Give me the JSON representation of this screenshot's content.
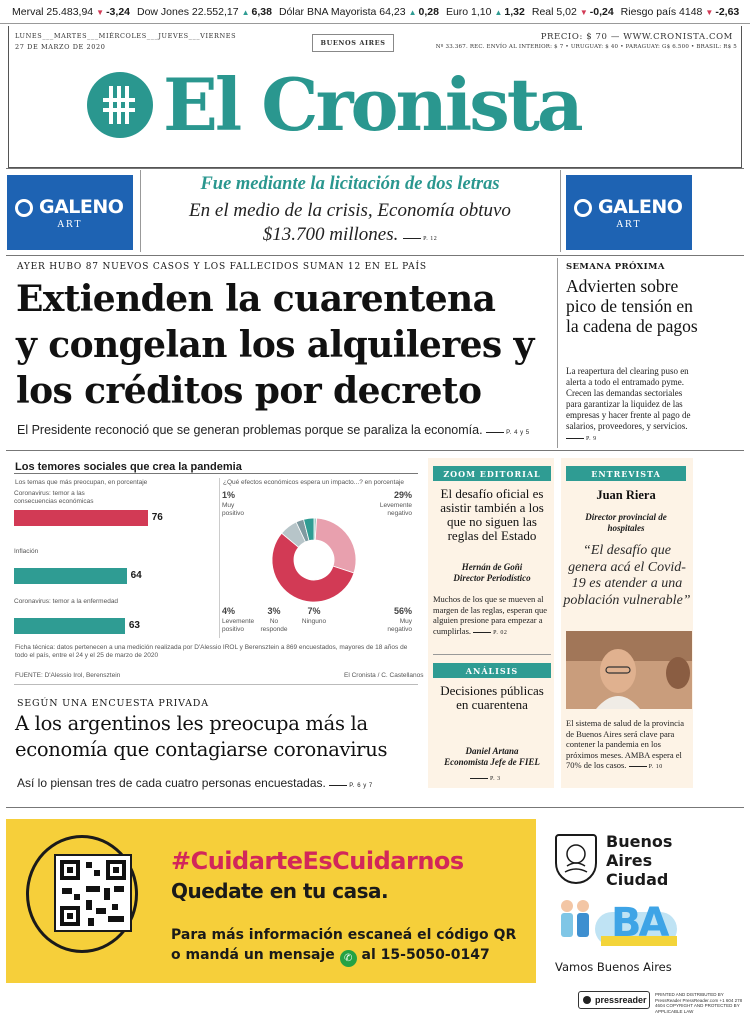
{
  "ticker": [
    {
      "name": "Merval",
      "value": "25.483,94",
      "change": "-3,24",
      "dir": "down"
    },
    {
      "name": "Dow Jones",
      "value": "22.552,17",
      "change": "6,38",
      "dir": "up"
    },
    {
      "name": "Dólar BNA Mayorista",
      "value": "64,23",
      "change": "0,28",
      "dir": "up"
    },
    {
      "name": "Euro",
      "value": "1,10",
      "change": "1,32",
      "dir": "up"
    },
    {
      "name": "Real",
      "value": "5,02",
      "change": "-0,24",
      "dir": "down"
    },
    {
      "name": "Riesgo país",
      "value": "4148",
      "change": "-2,63",
      "dir": "down"
    }
  ],
  "masthead": {
    "days": "LUNES___MARTES___MIÉRCOLES___JUEVES___VIERNES",
    "date": "27 DE MARZO DE 2020",
    "city": "BUENOS AIRES",
    "price": "PRECIO: $ 70 — WWW.CRONISTA.COM",
    "prices_line": "Nº 33.367. REC. ENVÍO AL INTERIOR: $ 7 • URUGUAY: $ 40 • PARAGUAY: G$ 6.500 • BRASIL: R$ 5",
    "logo_text": "El Cronista"
  },
  "promo": {
    "galeno_left": {
      "brand": "GALENO",
      "sub": "ART"
    },
    "galeno_right": {
      "brand": "GALENO",
      "sub": "ART"
    }
  },
  "top_teaser": {
    "headline": "Fue mediante la licitación de dos letras",
    "body": "En el medio de la crisis, Economía obtuvo $13.700 millones.",
    "page": "P. 12"
  },
  "main_story": {
    "kicker": "AYER HUBO 87 NUEVOS CASOS Y LOS FALLECIDOS SUMAN 12 EN EL PAÍS",
    "headline_lines": [
      "Extienden la cuarentena",
      "y congelan los alquileres y",
      "los créditos por decreto"
    ],
    "sub": "El Presidente reconoció que se generan problemas porque se paraliza la economía.",
    "page": "P. 4 y 5"
  },
  "side_story": {
    "kicker": "SEMANA PRÓXIMA",
    "headline": "Advierten sobre pico de tensión en la cadena de pagos",
    "body": "La reapertura del clearing puso en alerta a todo el entramado pyme. Crecen las demandas sectoriales para garantizar la liquidez de las empresas y hacer frente al pago de salarios, proveedores, y servicios.",
    "page": "P. 9"
  },
  "chart_data": [
    {
      "type": "bar",
      "title": "Los temores sociales que crea la pandemia",
      "subtitle": "Los temas que más preocupan, en porcentaje",
      "categories": [
        "Coronavirus: temor a las consecuencias económicas",
        "Inflación",
        "Coronavirus: temor a la enfermedad"
      ],
      "values": [
        76,
        64,
        63
      ],
      "colors": [
        "#d23a55",
        "#2f9c93",
        "#2f9c93"
      ],
      "ylim": [
        0,
        100
      ]
    },
    {
      "type": "pie",
      "subtitle": "¿Qué efectos económicos espera un impacto...? en porcentaje",
      "categories": [
        "Muy positivo",
        "Levemente negativo",
        "Muy negativo",
        "Ninguno",
        "No responde",
        "Levemente positivo"
      ],
      "values": [
        1,
        29,
        56,
        7,
        3,
        4
      ],
      "labels": [
        "1%",
        "29%",
        "56%",
        "7%",
        "3%",
        "4%"
      ],
      "colors": [
        "#9fd0c9",
        "#e8a0ae",
        "#d23a55",
        "#b7c5c9",
        "#7e9aa0",
        "#2f9c93"
      ]
    }
  ],
  "chart_notes": {
    "footnote": "Ficha técnica: datos pertenecen a una medición realizada por D'Alessio IROL y Berensztein a 869 encuestados, mayores de 18 años de todo el país, entre el 24 y el 25 de marzo de 2020",
    "source": "FUENTE: D'Alessio Irol, Berensztein",
    "credit": "El Cronista / C. Castellanos"
  },
  "survey_story": {
    "kicker": "SEGÚN UNA ENCUESTA PRIVADA",
    "headline": "A los argentinos les preocupa más la economía que contagiarse coronavirus",
    "sub": "Así lo piensan tres de cada cuatro personas encuestadas.",
    "page": "P. 6 y 7"
  },
  "zoom": {
    "tag": "ZOOM EDITORIAL",
    "headline": "El desafío oficial es asistir también a los que no siguen las reglas del Estado",
    "author": "Hernán de Goñi",
    "author_role": "Director Periodístico",
    "body": "Muchos de los que se mueven al margen de las reglas, esperan que alguien presione para empezar a cumplirlas.",
    "page": "P. 02"
  },
  "analisis": {
    "tag": "ANÁLISIS",
    "headline": "Decisiones públicas en cuarentena",
    "author": "Daniel Artana",
    "author_role": "Economista Jefe de FIEL",
    "page": "P. 3"
  },
  "entrevista": {
    "tag": "ENTREVISTA",
    "name": "Juan Riera",
    "role": "Director provincial de hospitales",
    "quote": "“El desafío que genera acá el Covid-19 es atender a una población vulnerable”",
    "body": "El sistema de salud de la provincia de Buenos Aires será clave para contener la pandemia en los próximos meses. AMBA espera el 70% de los casos.",
    "page": "P. 10"
  },
  "ad": {
    "hashtag": "#CuidarteEsCuidarnos",
    "stay": "Quedate en tu casa.",
    "info1": "Para más información escaneá el código QR",
    "info2_pre": "o mandá un mensaje",
    "info2_post": "al 15-5050-0147",
    "gov_name_lines": [
      "Buenos",
      "Aires",
      "Ciudad"
    ],
    "slogan": "Vamos Buenos Aires",
    "ba_letters": "BA"
  },
  "footer": {
    "pressreader": "pressreader",
    "fine": "PRINTED AND DISTRIBUTED BY PressReader PressReader.com +1 604 278 4604 COPYRIGHT AND PROTECTED BY APPLICABLE LAW"
  }
}
